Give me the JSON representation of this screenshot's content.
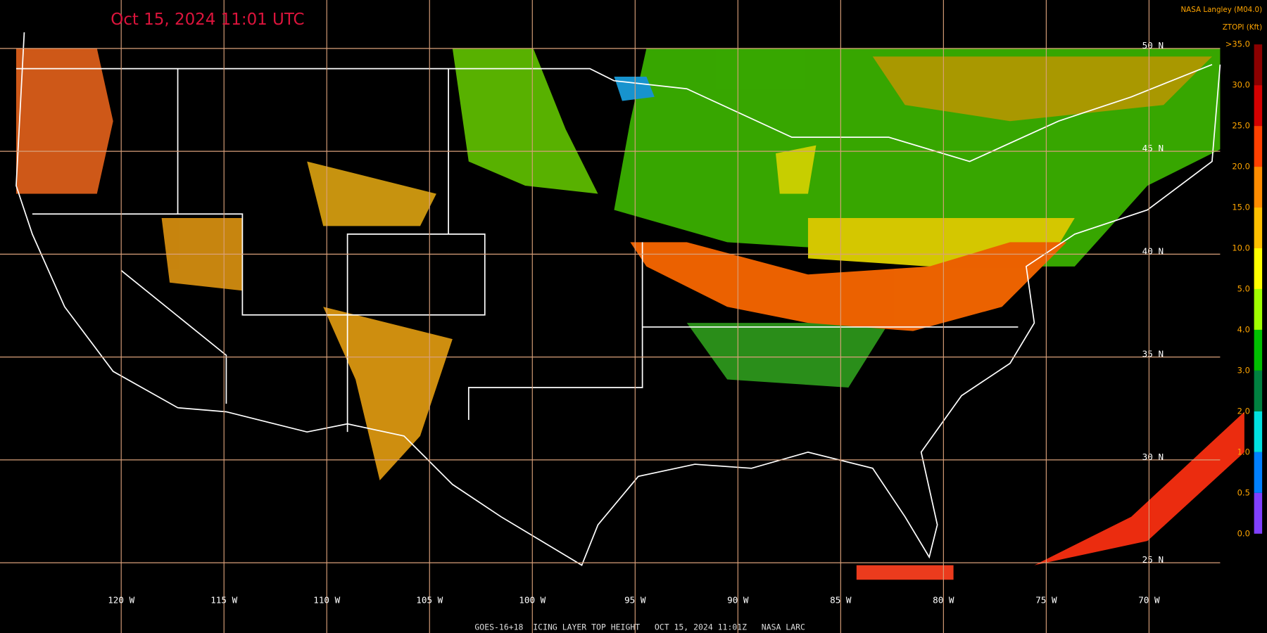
{
  "header": {
    "title": "Oct 15, 2024 11:01 UTC",
    "credit": "NASA Langley (M04.0)",
    "colorbar_title": "ZTOPI (Kft)"
  },
  "map": {
    "lat_labels": [
      "50 N",
      "45 N",
      "40 N",
      "35 N",
      "30 N",
      "25 N"
    ],
    "lon_labels": [
      "120 W",
      "115 W",
      "110 W",
      "105 W",
      "100 W",
      "95 W",
      "90 W",
      "85 W",
      "80 W",
      "75 W",
      "70 W"
    ]
  },
  "colorbar": {
    "labels": [
      ">35.0",
      "30.0",
      "25.0",
      "20.0",
      "15.0",
      "10.0",
      "5.0",
      "4.0",
      "3.0",
      "2.0",
      "1.0",
      "0.5",
      "0.0"
    ],
    "colors": [
      "#8b0000",
      "#d40000",
      "#ff4000",
      "#ff8c00",
      "#ffc000",
      "#ffff00",
      "#a0ff00",
      "#00c000",
      "#008040",
      "#00e0e0",
      "#0080ff",
      "#8040ff"
    ]
  },
  "footer": {
    "text": "GOES-16+18  ICING LAYER TOP HEIGHT   OCT 15, 2024 11:01Z   NASA LARC"
  }
}
